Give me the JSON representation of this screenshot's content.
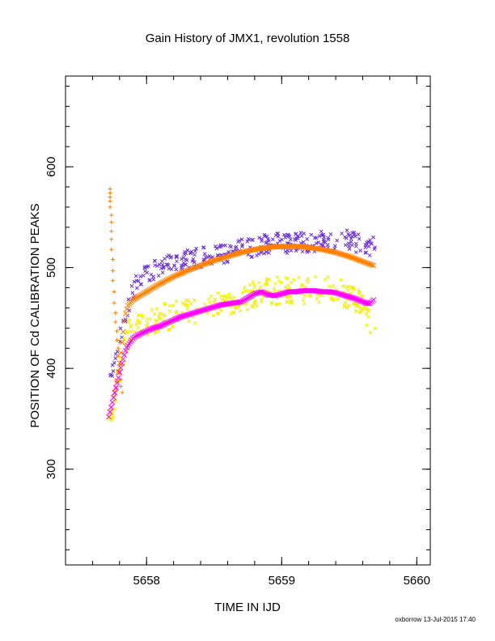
{
  "chart_data": {
    "type": "scatter",
    "title": "Gain History of JMX1, revolution 1558",
    "xlabel": "TIME IN IJD",
    "ylabel": "POSITION OF Cd CALIBRATION PEAKS",
    "xlim": [
      5657.4,
      5660.1
    ],
    "ylim": [
      205,
      690
    ],
    "x_ticks": [
      5658,
      5659,
      5660
    ],
    "x_tick_labels": [
      "5658",
      "5659",
      "5660"
    ],
    "x_minor_step": 0.2,
    "y_ticks": [
      300,
      400,
      500,
      600
    ],
    "y_tick_labels": [
      "300",
      "400",
      "500",
      "600"
    ],
    "y_minor_step": 20,
    "grid": false,
    "legend": "none",
    "series": [
      {
        "marker": "cross",
        "color": "#6a2fd6",
        "trend": [
          [
            5657.72,
            392
          ],
          [
            5657.78,
            410
          ],
          [
            5657.82,
            440
          ],
          [
            5657.88,
            470
          ],
          [
            5657.95,
            490
          ],
          [
            5658.1,
            502
          ],
          [
            5658.3,
            508
          ],
          [
            5658.5,
            512
          ],
          [
            5658.7,
            518
          ],
          [
            5658.9,
            524
          ],
          [
            5659.0,
            524
          ],
          [
            5659.2,
            525
          ],
          [
            5659.4,
            527
          ],
          [
            5659.5,
            527
          ],
          [
            5659.6,
            523
          ],
          [
            5659.7,
            520
          ]
        ],
        "scatter": 10
      },
      {
        "marker": "cross",
        "color": "#f0f000",
        "trend": [
          [
            5657.72,
            348
          ],
          [
            5657.78,
            380
          ],
          [
            5657.82,
            410
          ],
          [
            5657.88,
            440
          ],
          [
            5657.95,
            445
          ],
          [
            5658.1,
            450
          ],
          [
            5658.3,
            456
          ],
          [
            5658.5,
            462
          ],
          [
            5658.7,
            470
          ],
          [
            5658.9,
            476
          ],
          [
            5659.0,
            478
          ],
          [
            5659.2,
            478
          ],
          [
            5659.4,
            478
          ],
          [
            5659.5,
            473
          ],
          [
            5659.6,
            465
          ],
          [
            5659.65,
            440
          ],
          [
            5659.7,
            430
          ]
        ],
        "scatter": 14
      },
      {
        "marker": "plus",
        "color": "#ff8000",
        "x": [
          5657.73,
          5657.73,
          5657.73,
          5657.73,
          5657.73,
          5657.74,
          5657.74,
          5657.74,
          5657.74,
          5657.74,
          5657.75,
          5657.75,
          5657.75,
          5657.76,
          5657.76,
          5657.77,
          5657.77,
          5657.78,
          5657.78,
          5657.79,
          5657.79,
          5657.8,
          5657.8,
          5657.81,
          5657.81,
          5657.82
        ],
        "y": [
          578,
          574,
          570,
          566,
          560,
          552,
          545,
          536,
          528,
          518,
          508,
          497,
          487,
          476,
          465,
          455,
          446,
          437,
          428,
          420,
          412,
          404,
          396,
          389,
          382,
          376
        ]
      },
      {
        "marker": "dense-line",
        "color": "#ff8000",
        "x": [
          5657.72,
          5657.75,
          5657.78,
          5657.8,
          5657.82,
          5657.84,
          5657.86,
          5657.9,
          5658.0,
          5658.1,
          5658.2,
          5658.3,
          5658.4,
          5658.5,
          5658.6,
          5658.7,
          5658.8,
          5658.9,
          5659.0,
          5659.1,
          5659.2,
          5659.3,
          5659.4,
          5659.5,
          5659.6,
          5659.68
        ],
        "y": [
          352,
          368,
          385,
          405,
          428,
          452,
          462,
          468,
          476,
          484,
          491,
          497,
          502,
          507,
          511,
          515,
          518,
          520,
          521,
          521,
          520,
          518,
          515,
          511,
          506,
          502
        ]
      },
      {
        "marker": "dense-line",
        "color": "#ff00ff",
        "x": [
          5657.72,
          5657.75,
          5657.78,
          5657.8,
          5657.82,
          5657.85,
          5657.9,
          5657.95,
          5658.0,
          5658.05,
          5658.1,
          5658.15,
          5658.2,
          5658.25,
          5658.3,
          5658.35,
          5658.4,
          5658.45,
          5658.5,
          5658.55,
          5658.6,
          5658.65,
          5658.7,
          5658.75,
          5658.8,
          5658.85,
          5658.9,
          5658.95,
          5659.0,
          5659.05,
          5659.1,
          5659.15,
          5659.2,
          5659.25,
          5659.3,
          5659.35,
          5659.4,
          5659.45,
          5659.5,
          5659.55,
          5659.6,
          5659.65,
          5659.68
        ],
        "y": [
          352,
          368,
          384,
          396,
          406,
          420,
          430,
          434,
          437,
          440,
          442,
          445,
          448,
          451,
          453,
          455,
          457,
          459,
          461,
          463,
          464,
          465,
          466,
          470,
          474,
          476,
          473,
          472,
          474,
          476,
          476,
          477,
          477,
          477,
          476,
          476,
          475,
          473,
          471,
          469,
          466,
          464,
          468
        ]
      }
    ]
  },
  "footer": {
    "credit": "oxborrow 13-Jul-2015 17:40"
  }
}
